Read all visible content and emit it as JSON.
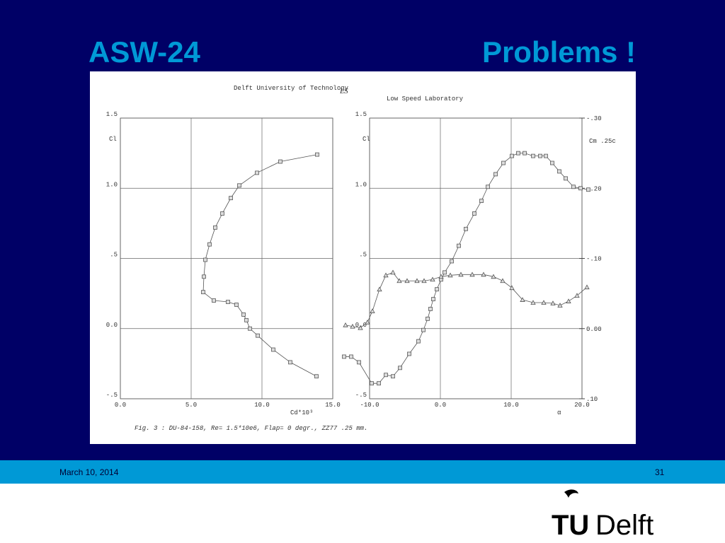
{
  "slide": {
    "title_left": "ASW-24",
    "title_right": "Problems !",
    "date": "March 10, 2014",
    "page": "31",
    "logo_tu": "TU",
    "logo_delft": "Delft"
  },
  "scan": {
    "institution": "Delft University of Technology",
    "lab": "Low Speed Laboratory",
    "caption": "Fig.  3 :  DU-84-158, Re= 1.5*10e6, Flap= 0 degr., ZZ77 .25 mm."
  },
  "chart_data": [
    {
      "type": "line",
      "x_label": "Cd*10³",
      "y_label": "Cl",
      "grid": true,
      "xlim": [
        0,
        15
      ],
      "xticks": [
        {
          "value": 0,
          "label": "0.0"
        },
        {
          "value": 5,
          "label": "5.0"
        },
        {
          "value": 10,
          "label": "10.0"
        },
        {
          "value": 15,
          "label": "15.0"
        }
      ],
      "ylim": [
        -0.5,
        1.5
      ],
      "yticks": [
        {
          "value": -0.5,
          "label": "-.5"
        },
        {
          "value": 0,
          "label": "0.0"
        },
        {
          "value": 0.5,
          "label": ".5"
        },
        {
          "value": 1,
          "label": "1.0"
        },
        {
          "value": 1.5,
          "label": "1.5"
        }
      ],
      "series": [
        {
          "color": "#555555",
          "marker": "square",
          "x": [
            13.85,
            12.0,
            10.8,
            9.7,
            9.15,
            8.9,
            8.7,
            8.2,
            7.6,
            6.6,
            5.85,
            5.9,
            6.0,
            6.3,
            6.7,
            7.2,
            7.8,
            8.4,
            9.65,
            11.3,
            13.9
          ],
          "values": [
            -0.34,
            -0.24,
            -0.15,
            -0.05,
            0.0,
            0.06,
            0.1,
            0.17,
            0.19,
            0.2,
            0.26,
            0.37,
            0.49,
            0.6,
            0.72,
            0.82,
            0.93,
            1.02,
            1.11,
            1.19,
            1.24
          ]
        }
      ]
    },
    {
      "type": "line",
      "x_label": "α",
      "y_label": "Cl",
      "y2_label": "Cm .25c",
      "grid": true,
      "xlim": [
        -10,
        20
      ],
      "xticks": [
        {
          "value": -10,
          "label": "-10.0"
        },
        {
          "value": 0,
          "label": "0.0"
        },
        {
          "value": 10,
          "label": "10.0"
        },
        {
          "value": 20,
          "label": "20.0"
        }
      ],
      "ylim": [
        -0.5,
        1.5
      ],
      "yticks": [
        {
          "value": -0.5,
          "label": "-.5"
        },
        {
          "value": 0,
          "label": "0.0"
        },
        {
          "value": 0.5,
          "label": ".5"
        },
        {
          "value": 1,
          "label": "1.0"
        },
        {
          "value": 1.5,
          "label": "1.5"
        }
      ],
      "y2lim": [
        0.1,
        -0.3
      ],
      "y2ticks": [
        {
          "value": -0.3,
          "label": "-.30"
        },
        {
          "value": -0.2,
          "label": "-.20"
        },
        {
          "value": -0.1,
          "label": "-.10"
        },
        {
          "value": 0,
          "label": "0.00"
        },
        {
          "value": 0.1,
          "label": ".10"
        }
      ],
      "series": [
        {
          "color": "#555555",
          "marker": "square",
          "x": [
            -13.6,
            -12.6,
            -11.5,
            -9.7,
            -8.7,
            -7.7,
            -6.7,
            -5.7,
            -4.4,
            -3.1,
            -2.4,
            -1.8,
            -1.4,
            -1.0,
            -0.5,
            0.1,
            0.6,
            1.6,
            2.6,
            3.6,
            4.8,
            5.8,
            6.7,
            7.8,
            8.9,
            10.1,
            11.0,
            11.9,
            13.1,
            14.1,
            14.9,
            15.8,
            16.8,
            17.7,
            18.8,
            19.8,
            20.9
          ],
          "values": [
            -0.2,
            -0.2,
            -0.24,
            -0.39,
            -0.39,
            -0.33,
            -0.34,
            -0.28,
            -0.18,
            -0.09,
            -0.01,
            0.07,
            0.14,
            0.21,
            0.28,
            0.35,
            0.4,
            0.48,
            0.59,
            0.71,
            0.82,
            0.91,
            1.01,
            1.1,
            1.18,
            1.23,
            1.25,
            1.25,
            1.23,
            1.23,
            1.23,
            1.18,
            1.12,
            1.07,
            1.01,
            1.0,
            0.99
          ]
        },
        {
          "color": "#555555",
          "marker": "triangle",
          "axis": "y2",
          "x": [
            -13.4,
            -12.4,
            -11.3,
            -10.3,
            -9.6,
            -8.6,
            -7.7,
            -6.7,
            -5.8,
            -4.7,
            -3.3,
            -2.3,
            -1.1,
            0.1,
            1.4,
            2.9,
            4.5,
            6.1,
            7.5,
            8.8,
            10.1,
            11.6,
            13.1,
            14.6,
            15.9,
            16.9,
            18.1,
            19.3,
            20.7
          ],
          "values": [
            -0.005,
            -0.003,
            -0.001,
            -0.009,
            -0.025,
            -0.056,
            -0.076,
            -0.08,
            -0.068,
            -0.068,
            -0.068,
            -0.068,
            -0.07,
            -0.074,
            -0.076,
            -0.077,
            -0.077,
            -0.077,
            -0.074,
            -0.068,
            -0.058,
            -0.041,
            -0.037,
            -0.037,
            -0.036,
            -0.033,
            -0.039,
            -0.047,
            -0.059
          ]
        }
      ]
    }
  ]
}
